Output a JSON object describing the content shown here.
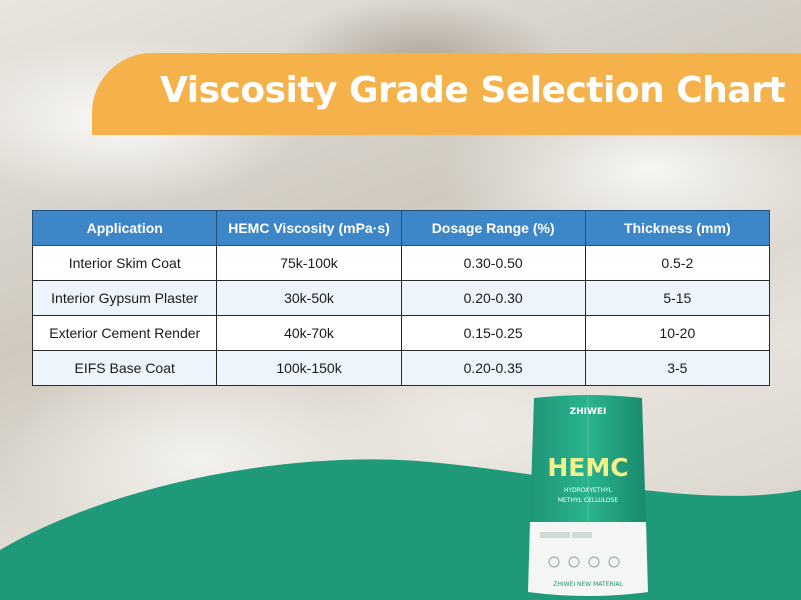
{
  "title": "Viscosity Grade Selection Chart",
  "table": {
    "headers": [
      "Application",
      "HEMC Viscosity (mPa·s)",
      "Dosage Range (%)",
      "Thickness (mm)"
    ],
    "rows": [
      [
        "Interior Skim Coat",
        "75k-100k",
        "0.30-0.50",
        "0.5-2"
      ],
      [
        "Interior Gypsum Plaster",
        "30k-50k",
        "0.20-0.30",
        "5-15"
      ],
      [
        "Exterior Cement Render",
        "40k-70k",
        "0.15-0.25",
        "10-20"
      ],
      [
        "EIFS Base Coat",
        "100k-150k",
        "0.20-0.35",
        "3-5"
      ]
    ]
  },
  "product": {
    "brand": "ZHIWEI",
    "name": "HEMC",
    "subtitle_line1": "HYDROXYETHYL",
    "subtitle_line2": "METHYL CELLULOSE",
    "footer": "ZHIWEI NEW MATERIAL"
  },
  "colors": {
    "banner": "#f5b14a",
    "header": "#3d86c8",
    "wave": "#1f9a78"
  }
}
